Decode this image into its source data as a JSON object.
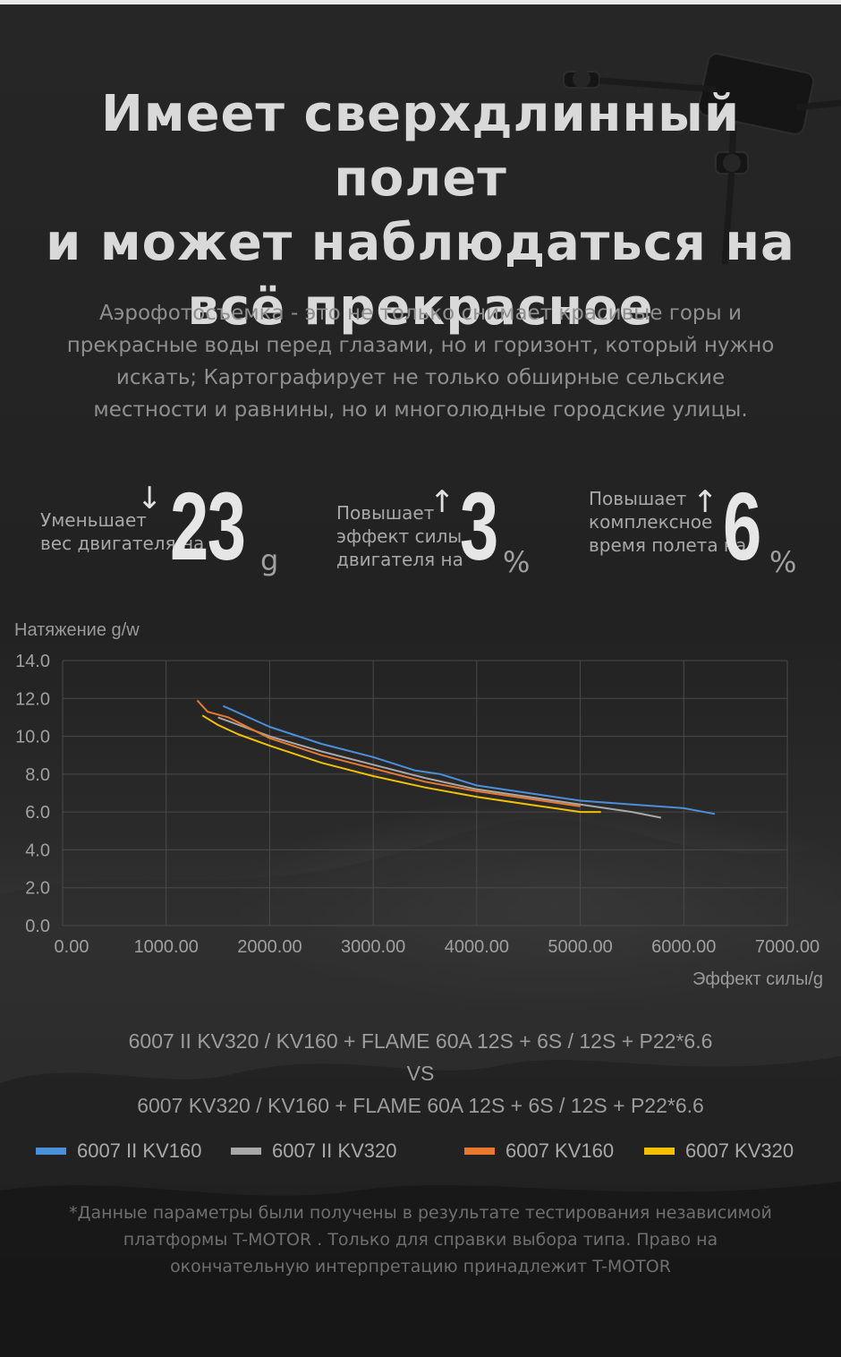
{
  "header": {
    "title_lines": [
      "Имеет сверхдлинный полет",
      "и может наблюдаться на",
      "всё прекрасное"
    ],
    "intro_lines": [
      "Аэрофотосъемка  - это не только снимает красивые горы и",
      "прекрасные воды перед глазами, но и горизонт, который нужно",
      "искать; Картографирует не только  обширные сельские",
      "местности и равнины, но и многолюдные городские улицы."
    ]
  },
  "stats": [
    {
      "label_lines": [
        "Уменьшает",
        "вес двигателя  на"
      ],
      "arrow": "↓",
      "value": "23",
      "unit": "g"
    },
    {
      "label_lines": [
        "Повышает",
        "эффект силы",
        "двигателя на"
      ],
      "arrow": "↑",
      "value": "3",
      "unit": "%"
    },
    {
      "label_lines": [
        "Повышает",
        "комплексное",
        "время полета на"
      ],
      "arrow": "↑",
      "value": "6",
      "unit": "%"
    }
  ],
  "chart_data": {
    "type": "line",
    "ylabel": "Натяжение g/w",
    "xlabel": "Эффект силы/g",
    "xlim": [
      0,
      7000
    ],
    "ylim": [
      0,
      14
    ],
    "x_ticks": [
      "0.00",
      "1000.00",
      "2000.00",
      "3000.00",
      "4000.00",
      "5000.00",
      "6000.00",
      "7000.00"
    ],
    "y_ticks": [
      "0.0",
      "2.0",
      "4.0",
      "6.0",
      "8.0",
      "10.0",
      "12.0",
      "14.0"
    ],
    "grid": true,
    "legend_position": "bottom",
    "series": [
      {
        "name": "6007 II KV160",
        "color": "#4a90d9",
        "points": [
          [
            1550,
            11.6
          ],
          [
            2000,
            10.5
          ],
          [
            2500,
            9.6
          ],
          [
            3000,
            8.9
          ],
          [
            3400,
            8.2
          ],
          [
            3650,
            8.0
          ],
          [
            4000,
            7.4
          ],
          [
            4500,
            7.0
          ],
          [
            5000,
            6.6
          ],
          [
            5500,
            6.4
          ],
          [
            6000,
            6.2
          ],
          [
            6300,
            5.9
          ]
        ]
      },
      {
        "name": "6007 II KV320",
        "color": "#a8a8a8",
        "points": [
          [
            1500,
            11.0
          ],
          [
            2000,
            10.0
          ],
          [
            2500,
            9.2
          ],
          [
            3000,
            8.5
          ],
          [
            3500,
            7.8
          ],
          [
            4000,
            7.2
          ],
          [
            4500,
            6.8
          ],
          [
            5000,
            6.4
          ],
          [
            5500,
            6.0
          ],
          [
            5780,
            5.7
          ]
        ]
      },
      {
        "name": "6007 KV160",
        "color": "#e8792f",
        "points": [
          [
            1300,
            11.9
          ],
          [
            1400,
            11.3
          ],
          [
            1600,
            11.0
          ],
          [
            2000,
            9.9
          ],
          [
            2500,
            9.0
          ],
          [
            3000,
            8.3
          ],
          [
            3500,
            7.6
          ],
          [
            4000,
            7.1
          ],
          [
            4500,
            6.7
          ],
          [
            5000,
            6.3
          ]
        ]
      },
      {
        "name": "6007 KV320",
        "color": "#f2c200",
        "points": [
          [
            1350,
            11.1
          ],
          [
            1500,
            10.6
          ],
          [
            1700,
            10.1
          ],
          [
            2000,
            9.5
          ],
          [
            2500,
            8.6
          ],
          [
            3000,
            7.9
          ],
          [
            3500,
            7.3
          ],
          [
            4000,
            6.8
          ],
          [
            4500,
            6.4
          ],
          [
            5000,
            6.0
          ],
          [
            5200,
            6.0
          ]
        ]
      }
    ]
  },
  "models": {
    "line1": "6007 II KV320 / KV160 + FLAME 60A 12S + 6S / 12S + P22*6.6",
    "vs": "VS",
    "line2": "6007 KV320 / KV160 + FLAME 60A 12S + 6S / 12S + P22*6.6"
  },
  "footnote_lines": [
    "*Данные параметры были получены в результате тестирования независимой",
    "платформы T-MOTOR . Только для справки выбора типа. Право на",
    "окончательную интерпретацию принадлежит T-MOTOR"
  ]
}
